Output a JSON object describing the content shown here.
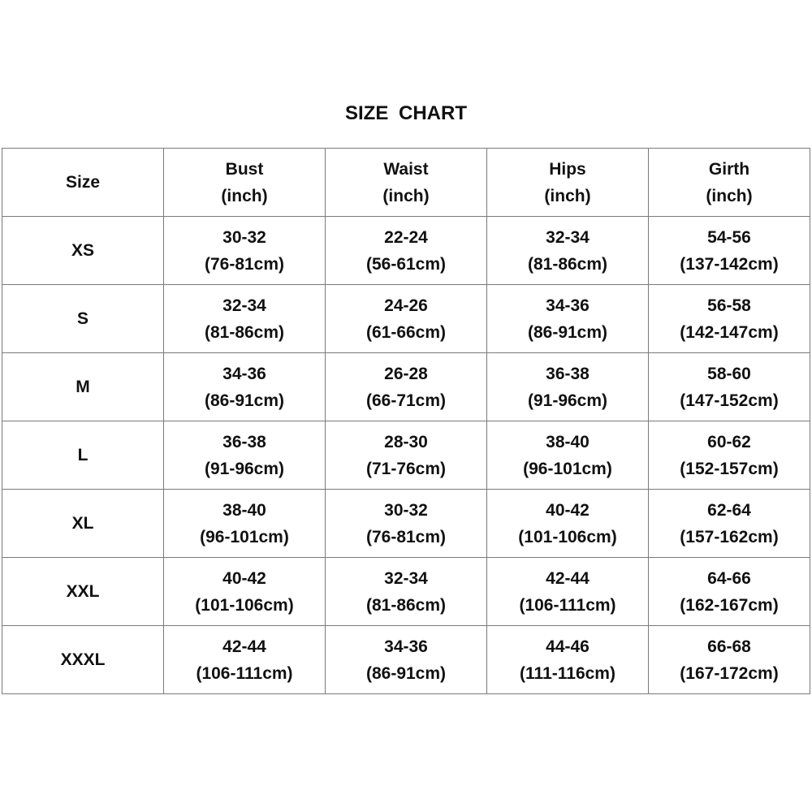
{
  "title": "SIZE  CHART",
  "headers": [
    {
      "line1": "Size",
      "line2": ""
    },
    {
      "line1": "Bust",
      "line2": "(inch)"
    },
    {
      "line1": "Waist",
      "line2": "(inch)"
    },
    {
      "line1": "Hips",
      "line2": "(inch)"
    },
    {
      "line1": "Girth",
      "line2": "(inch)"
    }
  ],
  "rows": [
    {
      "size": "XS",
      "cells": [
        [
          "30-32",
          "(76-81cm)"
        ],
        [
          "22-24",
          "(56-61cm)"
        ],
        [
          "32-34",
          "(81-86cm)"
        ],
        [
          "54-56",
          "(137-142cm)"
        ]
      ]
    },
    {
      "size": "S",
      "cells": [
        [
          "32-34",
          "(81-86cm)"
        ],
        [
          "24-26",
          "(61-66cm)"
        ],
        [
          "34-36",
          "(86-91cm)"
        ],
        [
          "56-58",
          "(142-147cm)"
        ]
      ]
    },
    {
      "size": "M",
      "cells": [
        [
          "34-36",
          "(86-91cm)"
        ],
        [
          "26-28",
          "(66-71cm)"
        ],
        [
          "36-38",
          "(91-96cm)"
        ],
        [
          "58-60",
          "(147-152cm)"
        ]
      ]
    },
    {
      "size": "L",
      "cells": [
        [
          "36-38",
          "(91-96cm)"
        ],
        [
          "28-30",
          "(71-76cm)"
        ],
        [
          "38-40",
          "(96-101cm)"
        ],
        [
          "60-62",
          "(152-157cm)"
        ]
      ]
    },
    {
      "size": "XL",
      "cells": [
        [
          "38-40",
          "(96-101cm)"
        ],
        [
          "30-32",
          "(76-81cm)"
        ],
        [
          "40-42",
          "(101-106cm)"
        ],
        [
          "62-64",
          "(157-162cm)"
        ]
      ]
    },
    {
      "size": "XXL",
      "cells": [
        [
          "40-42",
          "(101-106cm)"
        ],
        [
          "32-34",
          "(81-86cm)"
        ],
        [
          "42-44",
          "(106-111cm)"
        ],
        [
          "64-66",
          "(162-167cm)"
        ]
      ]
    },
    {
      "size": "XXXL",
      "cells": [
        [
          "42-44",
          "(106-111cm)"
        ],
        [
          "34-36",
          "(86-91cm)"
        ],
        [
          "44-46",
          "(111-116cm)"
        ],
        [
          "66-68",
          "(167-172cm)"
        ]
      ]
    }
  ]
}
